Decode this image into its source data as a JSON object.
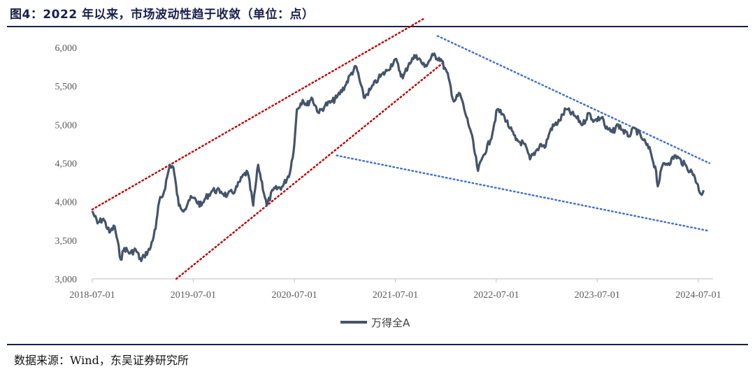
{
  "figure": {
    "title": "图4：2022 年以来，市场波动性趋于收敛（单位：点）",
    "source": "数据来源：Wind，东吴证券研究所"
  },
  "chart_data": {
    "type": "line",
    "title": "图4：2022 年以来，市场波动性趋于收敛（单位：点）",
    "xlabel": "",
    "ylabel": "",
    "ylim": [
      3000,
      6000
    ],
    "yticks": [
      "3,000",
      "3,500",
      "4,000",
      "4,500",
      "5,000",
      "5,500",
      "6,000"
    ],
    "xticks": [
      "2018-07-01",
      "2019-07-01",
      "2020-07-01",
      "2021-07-01",
      "2022-07-01",
      "2023-07-01",
      "2024-07-01"
    ],
    "grid": false,
    "legend": "bottom-center",
    "colors": {
      "series": "#44546a",
      "channel_lines": "#c00000",
      "wedge_lines": "#4472c4"
    },
    "series": [
      {
        "name": "万得全A",
        "x": [
          "2018-07-01",
          "2018-07-20",
          "2018-08-10",
          "2018-09-01",
          "2018-09-20",
          "2018-10-12",
          "2018-10-25",
          "2018-11-15",
          "2018-12-05",
          "2018-12-25",
          "2019-01-04",
          "2019-01-25",
          "2019-02-15",
          "2019-02-28",
          "2019-03-15",
          "2019-04-08",
          "2019-04-20",
          "2019-05-10",
          "2019-05-31",
          "2019-06-15",
          "2019-06-30",
          "2019-07-31",
          "2019-08-15",
          "2019-09-10",
          "2019-10-10",
          "2019-11-01",
          "2019-11-30",
          "2019-12-31",
          "2020-01-14",
          "2020-02-03",
          "2020-02-21",
          "2020-03-23",
          "2020-04-15",
          "2020-05-20",
          "2020-06-15",
          "2020-07-01",
          "2020-07-10",
          "2020-07-31",
          "2020-08-15",
          "2020-09-01",
          "2020-09-28",
          "2020-10-20",
          "2020-11-15",
          "2020-12-01",
          "2020-12-31",
          "2021-01-20",
          "2021-02-10",
          "2021-03-09",
          "2021-04-01",
          "2021-05-01",
          "2021-06-01",
          "2021-07-01",
          "2021-07-28",
          "2021-08-20",
          "2021-09-15",
          "2021-10-15",
          "2021-11-15",
          "2021-12-13",
          "2022-01-10",
          "2022-01-28",
          "2022-02-20",
          "2022-03-15",
          "2022-04-01",
          "2022-04-26",
          "2022-05-15",
          "2022-06-10",
          "2022-07-05",
          "2022-07-31",
          "2022-08-20",
          "2022-09-10",
          "2022-10-10",
          "2022-10-31",
          "2022-11-20",
          "2022-12-10",
          "2022-12-23",
          "2023-01-15",
          "2023-02-15",
          "2023-03-10",
          "2023-04-15",
          "2023-05-10",
          "2023-05-31",
          "2023-06-20",
          "2023-07-20",
          "2023-08-01",
          "2023-08-25",
          "2023-09-15",
          "2023-10-20",
          "2023-11-15",
          "2023-12-15",
          "2024-01-10",
          "2024-01-30",
          "2024-02-05",
          "2024-02-25",
          "2024-03-15",
          "2024-04-10",
          "2024-05-20",
          "2024-06-15",
          "2024-07-10",
          "2024-07-20"
        ],
        "values": [
          3880,
          3720,
          3780,
          3600,
          3680,
          3250,
          3400,
          3330,
          3380,
          3230,
          3300,
          3380,
          3650,
          4000,
          4100,
          4480,
          4450,
          3950,
          3900,
          4020,
          4050,
          3950,
          4050,
          4150,
          4130,
          4080,
          4150,
          4350,
          4380,
          3950,
          4480,
          3950,
          4150,
          4200,
          4380,
          4750,
          5200,
          5320,
          5250,
          5350,
          5150,
          5250,
          5300,
          5350,
          5500,
          5650,
          5750,
          5350,
          5450,
          5600,
          5700,
          5850,
          5600,
          5800,
          5900,
          5750,
          5900,
          5850,
          5600,
          5300,
          5400,
          5100,
          4900,
          4400,
          4600,
          4800,
          5200,
          5100,
          4950,
          4800,
          4750,
          4550,
          4650,
          4750,
          4700,
          4950,
          5050,
          5200,
          5100,
          5000,
          5150,
          5050,
          5100,
          4950,
          4900,
          5000,
          4850,
          4950,
          4800,
          4650,
          4400,
          4200,
          4500,
          4500,
          4600,
          4450,
          4350,
          4100,
          4150
        ]
      }
    ],
    "annotations": [
      {
        "type": "channel",
        "style": "dotted",
        "color": "#c00000",
        "from": [
          "2018-07-01",
          3900
        ],
        "to": [
          "2021-10-15",
          6380
        ]
      },
      {
        "type": "channel",
        "style": "dotted",
        "color": "#c00000",
        "from": [
          "2019-05-01",
          3000
        ],
        "to": [
          "2021-12-20",
          5800
        ]
      },
      {
        "type": "wedge",
        "style": "dotted",
        "color": "#4472c4",
        "from": [
          "2021-12-01",
          6150
        ],
        "to": [
          "2024-08-10",
          4500
        ]
      },
      {
        "type": "wedge",
        "style": "dotted",
        "color": "#4472c4",
        "from": [
          "2020-12-01",
          4600
        ],
        "to": [
          "2024-08-10",
          3620
        ]
      }
    ]
  }
}
